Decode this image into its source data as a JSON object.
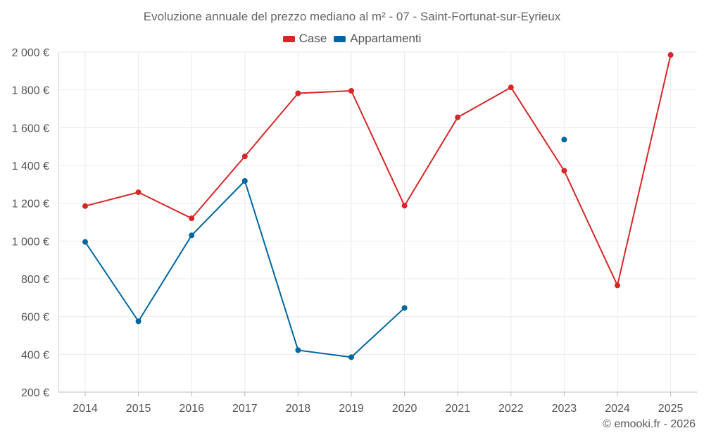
{
  "chart_data": {
    "type": "line",
    "title": "Evoluzione annuale del prezzo mediano al m² - 07 - Saint-Fortunat-sur-Eyrieux",
    "categories": [
      "2014",
      "2015",
      "2016",
      "2017",
      "2018",
      "2019",
      "2020",
      "2021",
      "2022",
      "2023",
      "2024",
      "2025"
    ],
    "yticks": [
      "200 €",
      "400 €",
      "600 €",
      "800 €",
      "1 000 €",
      "1 200 €",
      "1 400 €",
      "1 600 €",
      "1 800 €",
      "2 000 €"
    ],
    "ylim": [
      200,
      2000
    ],
    "series": [
      {
        "name": "Case",
        "color": "#d62728",
        "values": [
          1185,
          1258,
          1120,
          1448,
          1782,
          1795,
          1187,
          1655,
          1813,
          1372,
          765,
          1985
        ]
      },
      {
        "name": "Appartamenti",
        "color": "#0066a0",
        "values": [
          995,
          575,
          1030,
          1318,
          422,
          385,
          646,
          null,
          null,
          1537,
          null,
          null
        ]
      }
    ],
    "legend_position": "top-center",
    "grid": true
  },
  "credit": "© emooki.fr - 2026"
}
